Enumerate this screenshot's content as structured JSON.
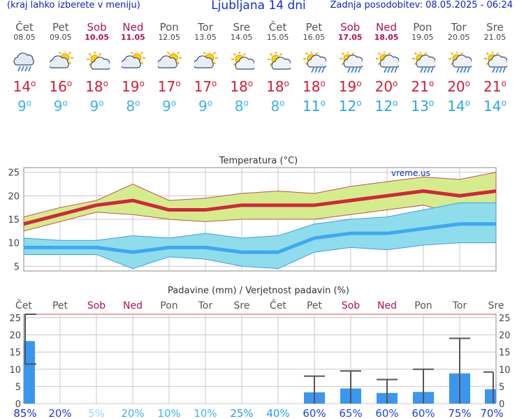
{
  "header": {
    "menu_hint": "(kraj lahko izberete v meniju)",
    "title": "Ljubljana 14 dni",
    "updated": "Zadnja posodobitev: 08.05.2025 - 06:24"
  },
  "days": [
    {
      "name": "Čet",
      "date": "08.05",
      "weekend": false,
      "icon": "rain-cloud-icon",
      "tmax": "14",
      "tmin": "9"
    },
    {
      "name": "Pet",
      "date": "09.05",
      "weekend": false,
      "icon": "partly-cloudy-icon",
      "tmax": "16",
      "tmin": "9"
    },
    {
      "name": "Sob",
      "date": "10.05",
      "weekend": true,
      "icon": "sun-cloud-icon",
      "tmax": "18",
      "tmin": "9"
    },
    {
      "name": "Ned",
      "date": "11.05",
      "weekend": true,
      "icon": "partly-cloudy-icon",
      "tmax": "19",
      "tmin": "8"
    },
    {
      "name": "Pon",
      "date": "12.05",
      "weekend": false,
      "icon": "partly-cloudy-icon",
      "tmax": "17",
      "tmin": "9"
    },
    {
      "name": "Tor",
      "date": "13.05",
      "weekend": false,
      "icon": "partly-cloudy-icon",
      "tmax": "17",
      "tmin": "9"
    },
    {
      "name": "Sre",
      "date": "14.05",
      "weekend": false,
      "icon": "sun-cloud-icon",
      "tmax": "18",
      "tmin": "8"
    },
    {
      "name": "Čet",
      "date": "15.05",
      "weekend": false,
      "icon": "sun-cloud-icon",
      "tmax": "18",
      "tmin": "8"
    },
    {
      "name": "Pet",
      "date": "16.05",
      "weekend": false,
      "icon": "sun-rain-icon",
      "tmax": "18",
      "tmin": "11"
    },
    {
      "name": "Sob",
      "date": "17.05",
      "weekend": true,
      "icon": "sun-rain-icon",
      "tmax": "19",
      "tmin": "12"
    },
    {
      "name": "Ned",
      "date": "18.05",
      "weekend": true,
      "icon": "sun-rain-icon",
      "tmax": "20",
      "tmin": "12"
    },
    {
      "name": "Pon",
      "date": "19.05",
      "weekend": false,
      "icon": "sun-rain-icon",
      "tmax": "21",
      "tmin": "13"
    },
    {
      "name": "Tor",
      "date": "20.05",
      "weekend": false,
      "icon": "sun-rain-icon",
      "tmax": "20",
      "tmin": "14"
    },
    {
      "name": "Sre",
      "date": "21.05",
      "weekend": false,
      "icon": "sun-rain-icon",
      "tmax": "21",
      "tmin": "14"
    }
  ],
  "chart_data": [
    {
      "type": "line",
      "title": "Temperatura (°C)",
      "watermark": "vreme.us",
      "ylim": [
        4,
        26
      ],
      "yticks": [
        5,
        10,
        15,
        20,
        25
      ],
      "colors": {
        "max": "#d0283c",
        "min": "#40a8f0",
        "max_band": "#d4ec8c",
        "min_band": "#8fdcec"
      },
      "series": [
        {
          "values": [
            14,
            16,
            18,
            19,
            17,
            17,
            18,
            18,
            18,
            19,
            20,
            21,
            20,
            21
          ]
        },
        {
          "values": [
            9,
            9,
            9,
            8,
            9,
            9,
            8,
            8,
            11,
            12,
            12,
            13,
            14,
            14
          ]
        }
      ],
      "max_band_upper": [
        15.5,
        17.5,
        19,
        22.5,
        19,
        19.5,
        20.5,
        21,
        20.5,
        22,
        23,
        24,
        23.5,
        25
      ],
      "max_band_lower": [
        12.5,
        14.5,
        16.5,
        16,
        15,
        14.5,
        15,
        15,
        15,
        16,
        17,
        18,
        16,
        17
      ],
      "min_band_upper": [
        11,
        10.5,
        10.5,
        11.5,
        11,
        12,
        11,
        11.5,
        14,
        15,
        15.5,
        17,
        18.5,
        18.5
      ],
      "min_band_lower": [
        7.5,
        7.5,
        7.5,
        4.5,
        7,
        6.5,
        5,
        4.5,
        8,
        9,
        8.5,
        9.5,
        10,
        10
      ]
    },
    {
      "type": "bar",
      "title": "Padavine (mm) / Verjetnost padavin (%)",
      "ylim": [
        0,
        26
      ],
      "yticks": [
        0,
        5,
        10,
        15,
        20,
        25
      ],
      "categories": [
        "Čet",
        "Pet",
        "Sob",
        "Ned",
        "Pon",
        "Tor",
        "Sre",
        "Čet",
        "Pet",
        "Sob",
        "Ned",
        "Pon",
        "Tor",
        "Sre"
      ],
      "weekend": [
        false,
        false,
        true,
        true,
        false,
        false,
        false,
        false,
        false,
        true,
        true,
        false,
        false,
        false
      ],
      "values": [
        18.2,
        0,
        0,
        0,
        0,
        0,
        0,
        0,
        3.3,
        4.4,
        3.1,
        3.4,
        8.8,
        4.2
      ],
      "err_low": [
        11.5,
        0,
        0,
        0,
        0,
        0,
        0,
        0,
        0,
        0,
        0,
        0,
        0,
        0
      ],
      "err_high": [
        26,
        0,
        0,
        0,
        0,
        0,
        0,
        0,
        8,
        9.5,
        7,
        10,
        19,
        9.2
      ],
      "probability": [
        "85%",
        "20%",
        "5%",
        "20%",
        "10%",
        "10%",
        "25%",
        "40%",
        "60%",
        "65%",
        "60%",
        "60%",
        "75%",
        "70%"
      ],
      "probability_colors": [
        "#1c2ed0",
        "#2a3bd8",
        "#8fd9f5",
        "#3fb0ee",
        "#38b8ee",
        "#3fb6ec",
        "#1e9ee6",
        "#1e9ee6",
        "#1a48d8",
        "#1a48d8",
        "#1a48d8",
        "#1a48d8",
        "#1a3ad8",
        "#1a3ad8"
      ],
      "bar_color": "#3a96ee"
    }
  ]
}
